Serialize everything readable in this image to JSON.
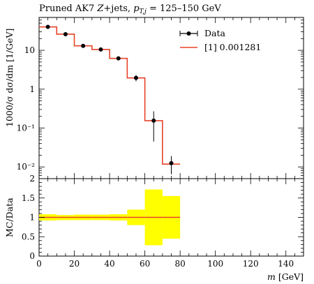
{
  "chart_data": [
    {
      "type": "line",
      "title": "Pruned AK7 Z+jets, p_{T,j} = 125–150 GeV",
      "title_parts": {
        "prefix": "Pruned AK7 ",
        "z_jets": "Z",
        "plus_jets": "+jets, ",
        "pt": "p",
        "pt_sub": "T,j",
        "range": " = 125–150 GeV"
      },
      "ylabel": "1000/σ dσ/dm [1/GeV]",
      "xlabel": "m [GeV]",
      "xlim": [
        0,
        150
      ],
      "ylim": [
        0.005,
        70
      ],
      "yscale": "log",
      "legend": {
        "placement": "top-right",
        "entries": [
          "Data",
          "[1] 0.001281"
        ]
      },
      "y_tick_labels": [
        "10⁻²",
        "10⁻¹",
        "1",
        "10"
      ],
      "series": [
        {
          "name": "Data",
          "style": "points-with-errorbars",
          "color": "#000000",
          "points": [
            {
              "x": 5,
              "y": 40,
              "yerr_low": 39,
              "yerr_high": 41
            },
            {
              "x": 15,
              "y": 26,
              "yerr_low": 25.5,
              "yerr_high": 26.5
            },
            {
              "x": 25,
              "y": 13,
              "yerr_low": 12.7,
              "yerr_high": 13.3
            },
            {
              "x": 35,
              "y": 10.5,
              "yerr_low": 10.2,
              "yerr_high": 10.8
            },
            {
              "x": 45,
              "y": 6.2,
              "yerr_low": 6.0,
              "yerr_high": 6.4
            },
            {
              "x": 55,
              "y": 1.95,
              "yerr_low": 1.6,
              "yerr_high": 2.3
            },
            {
              "x": 65,
              "y": 0.155,
              "yerr_low": 0.045,
              "yerr_high": 0.27
            },
            {
              "x": 75,
              "y": 0.0125,
              "yerr_low": 0.0065,
              "yerr_high": 0.019
            }
          ]
        },
        {
          "name": "[1] 0.001281",
          "style": "step-histogram",
          "color": "#e8442a",
          "bin_edges": [
            0,
            10,
            20,
            30,
            40,
            50,
            60,
            70,
            80
          ],
          "values": [
            40,
            26,
            13,
            10.5,
            6.2,
            1.95,
            0.155,
            0.0118
          ]
        }
      ]
    },
    {
      "type": "line",
      "ylabel": "MC/Data",
      "xlabel": "m [GeV]",
      "xlim": [
        0,
        150
      ],
      "ylim": [
        0,
        2
      ],
      "y_tick_labels": [
        "0",
        "0.5",
        "1",
        "1.5",
        "2"
      ],
      "x_tick_labels": [
        "0",
        "20",
        "40",
        "60",
        "80",
        "100",
        "120",
        "140"
      ],
      "band_color": "#ffff00",
      "ratio_color": "#e8442a",
      "bands": {
        "bin_edges": [
          0,
          10,
          20,
          30,
          40,
          50,
          60,
          70,
          80
        ],
        "low": [
          0.92,
          0.93,
          0.93,
          0.93,
          0.92,
          0.8,
          0.28,
          0.45
        ],
        "high": [
          1.08,
          1.06,
          1.07,
          1.07,
          1.08,
          1.2,
          1.72,
          1.55
        ]
      },
      "ratio": {
        "bin_edges": [
          0,
          10,
          20,
          30,
          40,
          50,
          60,
          70,
          80
        ],
        "values": [
          1,
          1,
          1,
          1,
          1,
          1,
          1,
          1
        ]
      }
    }
  ]
}
